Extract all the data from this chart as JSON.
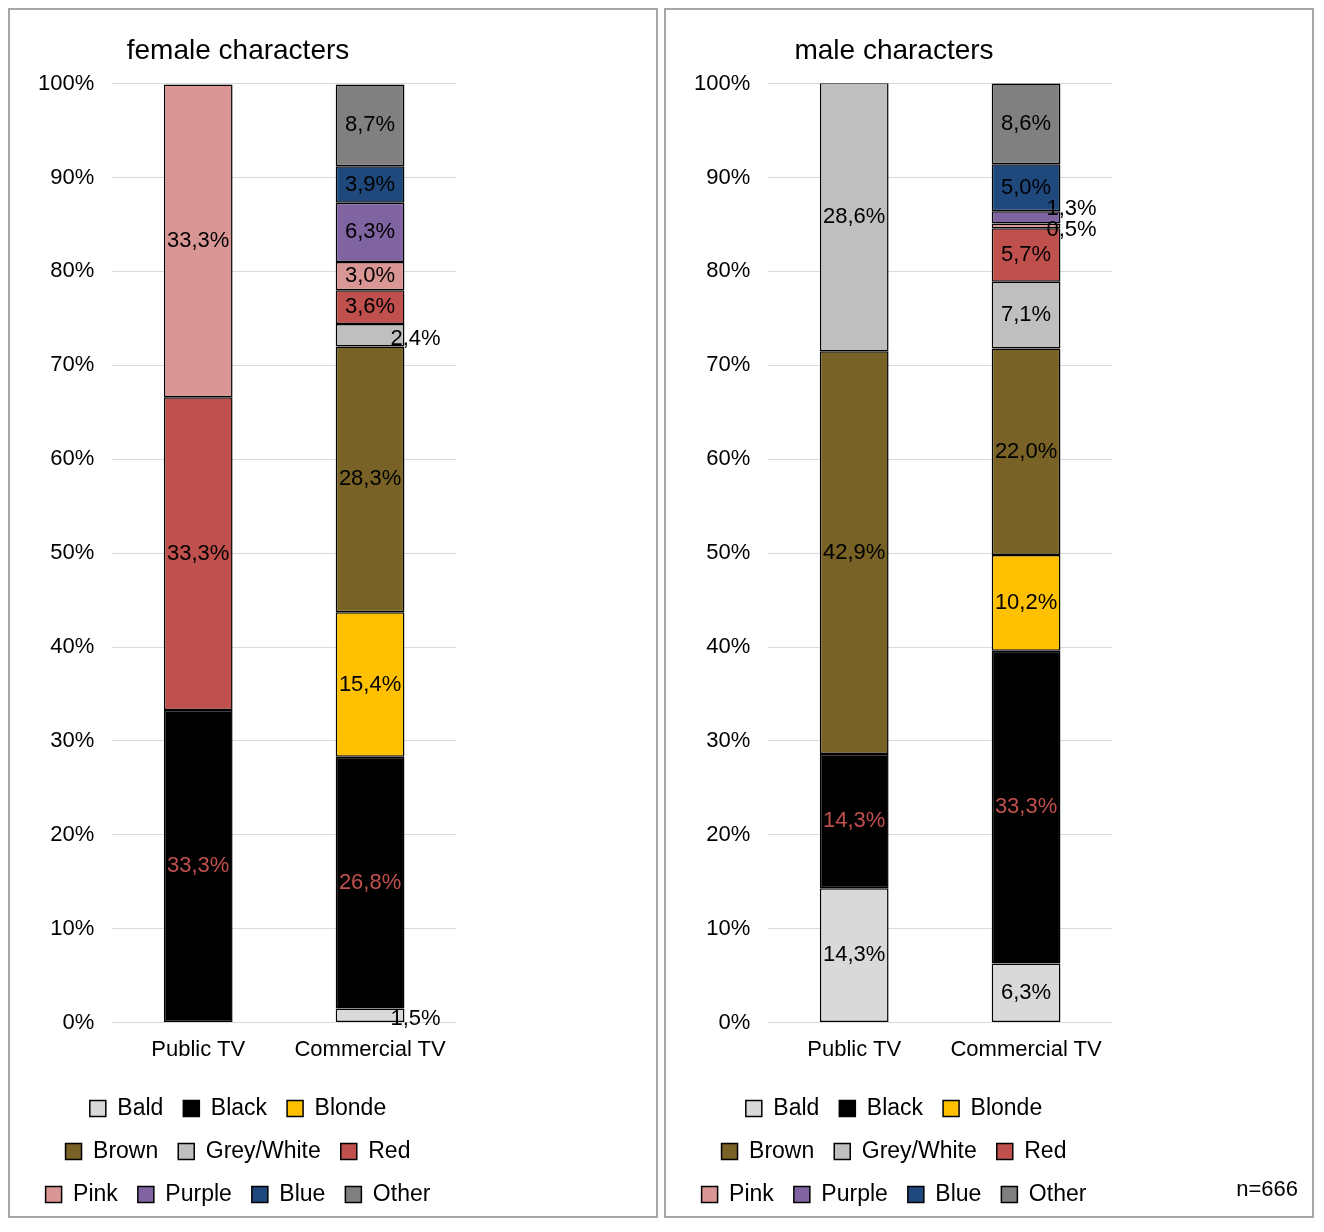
{
  "chart_data": [
    {
      "type": "bar",
      "title": "female characters",
      "stacked": true,
      "categories": [
        "Public TV",
        "Commercial TV"
      ],
      "ylim": [
        0,
        100
      ],
      "yticks": [
        {
          "value": 0,
          "label": "0%"
        },
        {
          "value": 10,
          "label": "10%"
        },
        {
          "value": 20,
          "label": "20%"
        },
        {
          "value": 30,
          "label": "30%"
        },
        {
          "value": 40,
          "label": "40%"
        },
        {
          "value": 50,
          "label": "50%"
        },
        {
          "value": 60,
          "label": "60%"
        },
        {
          "value": 70,
          "label": "70%"
        },
        {
          "value": 80,
          "label": "80%"
        },
        {
          "value": 90,
          "label": "90%"
        },
        {
          "value": 100,
          "label": "100%"
        }
      ],
      "grid": "y",
      "legend": "bottom",
      "series": [
        {
          "name": "Bald",
          "color": "#d9d9d9",
          "values": [
            null,
            1.5
          ],
          "value_labels": [
            null,
            "1,5%"
          ]
        },
        {
          "name": "Black",
          "color": "#000000",
          "values": [
            33.3,
            26.8
          ],
          "value_labels": [
            "33,3%",
            "26,8%"
          ]
        },
        {
          "name": "Blonde",
          "color": "#ffc000",
          "values": [
            null,
            15.4
          ],
          "value_labels": [
            null,
            "15,4%"
          ]
        },
        {
          "name": "Brown",
          "color": "#786226",
          "values": [
            null,
            28.3
          ],
          "value_labels": [
            null,
            "28,3%"
          ]
        },
        {
          "name": "Grey/White",
          "color": "#bfbfbf",
          "values": [
            null,
            2.4
          ],
          "value_labels": [
            null,
            "2,4%"
          ]
        },
        {
          "name": "Red",
          "color": "#c0504d",
          "values": [
            33.3,
            3.6
          ],
          "value_labels": [
            "33,3%",
            "3,6%"
          ]
        },
        {
          "name": "Pink",
          "color": "#d99694",
          "values": [
            33.3,
            3.0
          ],
          "value_labels": [
            "33,3%",
            "3,0%"
          ]
        },
        {
          "name": "Purple",
          "color": "#8064a2",
          "values": [
            null,
            6.3
          ],
          "value_labels": [
            null,
            "6,3%"
          ]
        },
        {
          "name": "Blue",
          "color": "#1f497d",
          "values": [
            null,
            3.9
          ],
          "value_labels": [
            null,
            "3,9%"
          ]
        },
        {
          "name": "Other",
          "color": "#808080",
          "values": [
            null,
            8.7
          ],
          "value_labels": [
            null,
            "8,7%"
          ]
        }
      ]
    },
    {
      "type": "bar",
      "title": "male characters",
      "stacked": true,
      "categories": [
        "Public TV",
        "Commercial TV"
      ],
      "ylim": [
        0,
        100
      ],
      "yticks": [
        {
          "value": 0,
          "label": "0%"
        },
        {
          "value": 10,
          "label": "10%"
        },
        {
          "value": 20,
          "label": "20%"
        },
        {
          "value": 30,
          "label": "30%"
        },
        {
          "value": 40,
          "label": "40%"
        },
        {
          "value": 50,
          "label": "50%"
        },
        {
          "value": 60,
          "label": "60%"
        },
        {
          "value": 70,
          "label": "70%"
        },
        {
          "value": 80,
          "label": "80%"
        },
        {
          "value": 90,
          "label": "90%"
        },
        {
          "value": 100,
          "label": "100%"
        }
      ],
      "grid": "y",
      "legend": "bottom",
      "annotations": [
        "n=666"
      ],
      "series": [
        {
          "name": "Bald",
          "color": "#d9d9d9",
          "values": [
            14.3,
            6.3
          ],
          "value_labels": [
            "14,3%",
            "6,3%"
          ]
        },
        {
          "name": "Black",
          "color": "#000000",
          "values": [
            14.3,
            33.3
          ],
          "value_labels": [
            "14,3%",
            "33,3%"
          ]
        },
        {
          "name": "Blonde",
          "color": "#ffc000",
          "values": [
            null,
            10.2
          ],
          "value_labels": [
            null,
            "10,2%"
          ]
        },
        {
          "name": "Brown",
          "color": "#786226",
          "values": [
            42.9,
            22.0
          ],
          "value_labels": [
            "42,9%",
            "22,0%"
          ]
        },
        {
          "name": "Grey/White",
          "color": "#bfbfbf",
          "values": [
            28.6,
            7.1
          ],
          "value_labels": [
            "28,6%",
            "7,1%"
          ]
        },
        {
          "name": "Red",
          "color": "#c0504d",
          "values": [
            null,
            5.7
          ],
          "value_labels": [
            null,
            "5,7%"
          ]
        },
        {
          "name": "Pink",
          "color": "#d99694",
          "values": [
            null,
            0.5
          ],
          "value_labels": [
            null,
            "0,5%"
          ]
        },
        {
          "name": "Purple",
          "color": "#8064a2",
          "values": [
            null,
            1.3
          ],
          "value_labels": [
            null,
            "1,3%"
          ]
        },
        {
          "name": "Blue",
          "color": "#1f497d",
          "values": [
            null,
            5.0
          ],
          "value_labels": [
            null,
            "5,0%"
          ]
        },
        {
          "name": "Other",
          "color": "#808080",
          "values": [
            null,
            8.6
          ],
          "value_labels": [
            null,
            "8,6%"
          ]
        }
      ]
    }
  ]
}
